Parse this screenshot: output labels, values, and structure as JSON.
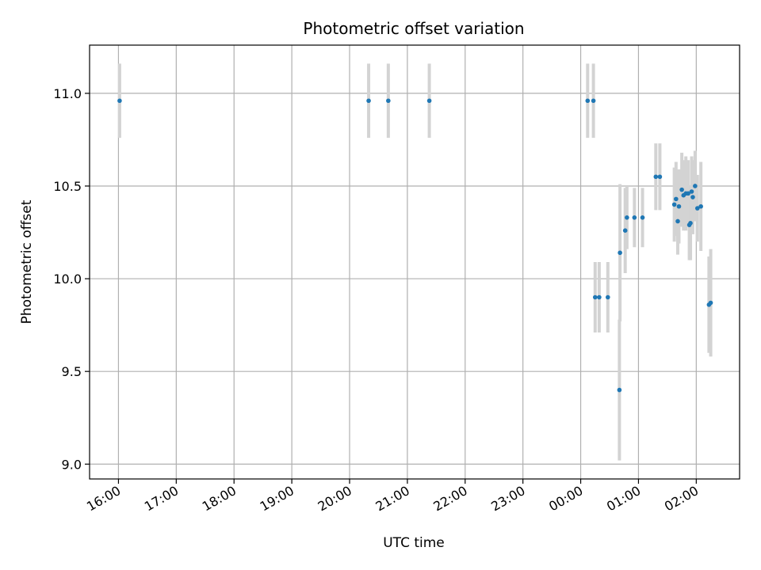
{
  "chart_data": {
    "type": "scatter",
    "title": "Photometric offset variation",
    "xlabel": "UTC time",
    "ylabel": "Photometric offset",
    "grid": true,
    "x_axis": {
      "unit": "hours",
      "range": [
        15.5,
        26.75
      ],
      "ticks": [
        {
          "value": 16,
          "label": "16:00"
        },
        {
          "value": 17,
          "label": "17:00"
        },
        {
          "value": 18,
          "label": "18:00"
        },
        {
          "value": 19,
          "label": "19:00"
        },
        {
          "value": 20,
          "label": "20:00"
        },
        {
          "value": 21,
          "label": "21:00"
        },
        {
          "value": 22,
          "label": "22:00"
        },
        {
          "value": 23,
          "label": "23:00"
        },
        {
          "value": 24,
          "label": "00:00"
        },
        {
          "value": 25,
          "label": "01:00"
        },
        {
          "value": 26,
          "label": "02:00"
        }
      ]
    },
    "y_axis": {
      "range": [
        8.92,
        11.26
      ],
      "ticks": [
        {
          "value": 9.0,
          "label": "9.0"
        },
        {
          "value": 9.5,
          "label": "9.5"
        },
        {
          "value": 10.0,
          "label": "10.0"
        },
        {
          "value": 10.5,
          "label": "10.5"
        },
        {
          "value": 11.0,
          "label": "11.0"
        }
      ]
    },
    "colors": {
      "point": "#1f77b4",
      "errorbar": "#d3d3d3",
      "grid": "#b0b0b0"
    },
    "points": [
      {
        "x": 16.02,
        "y": 10.96,
        "err": 0.2
      },
      {
        "x": 20.33,
        "y": 10.96,
        "err": 0.2
      },
      {
        "x": 20.67,
        "y": 10.96,
        "err": 0.2
      },
      {
        "x": 21.38,
        "y": 10.96,
        "err": 0.2
      },
      {
        "x": 24.12,
        "y": 10.96,
        "err": 0.2
      },
      {
        "x": 24.22,
        "y": 10.96,
        "err": 0.2
      },
      {
        "x": 24.25,
        "y": 9.9,
        "err": 0.19
      },
      {
        "x": 24.32,
        "y": 9.9,
        "err": 0.19
      },
      {
        "x": 24.47,
        "y": 9.9,
        "err": 0.19
      },
      {
        "x": 24.67,
        "y": 9.4,
        "err": 0.38
      },
      {
        "x": 24.68,
        "y": 10.14,
        "err": 0.37
      },
      {
        "x": 24.77,
        "y": 10.26,
        "err": 0.23
      },
      {
        "x": 24.8,
        "y": 10.33,
        "err": 0.17
      },
      {
        "x": 24.93,
        "y": 10.33,
        "err": 0.16
      },
      {
        "x": 25.07,
        "y": 10.33,
        "err": 0.16
      },
      {
        "x": 25.3,
        "y": 10.55,
        "err": 0.18
      },
      {
        "x": 25.37,
        "y": 10.55,
        "err": 0.18
      },
      {
        "x": 25.62,
        "y": 10.4,
        "err": 0.2
      },
      {
        "x": 25.65,
        "y": 10.43,
        "err": 0.2
      },
      {
        "x": 25.68,
        "y": 10.31,
        "err": 0.18
      },
      {
        "x": 25.7,
        "y": 10.39,
        "err": 0.2
      },
      {
        "x": 25.75,
        "y": 10.48,
        "err": 0.2
      },
      {
        "x": 25.78,
        "y": 10.45,
        "err": 0.19
      },
      {
        "x": 25.82,
        "y": 10.46,
        "err": 0.2
      },
      {
        "x": 25.86,
        "y": 10.46,
        "err": 0.18
      },
      {
        "x": 25.88,
        "y": 10.29,
        "err": 0.19
      },
      {
        "x": 25.9,
        "y": 10.3,
        "err": 0.2
      },
      {
        "x": 25.92,
        "y": 10.47,
        "err": 0.19
      },
      {
        "x": 25.94,
        "y": 10.44,
        "err": 0.2
      },
      {
        "x": 25.98,
        "y": 10.5,
        "err": 0.19
      },
      {
        "x": 26.02,
        "y": 10.38,
        "err": 0.18
      },
      {
        "x": 26.08,
        "y": 10.39,
        "err": 0.24
      },
      {
        "x": 26.22,
        "y": 9.86,
        "err": 0.26
      },
      {
        "x": 26.25,
        "y": 9.87,
        "err": 0.29
      }
    ]
  }
}
